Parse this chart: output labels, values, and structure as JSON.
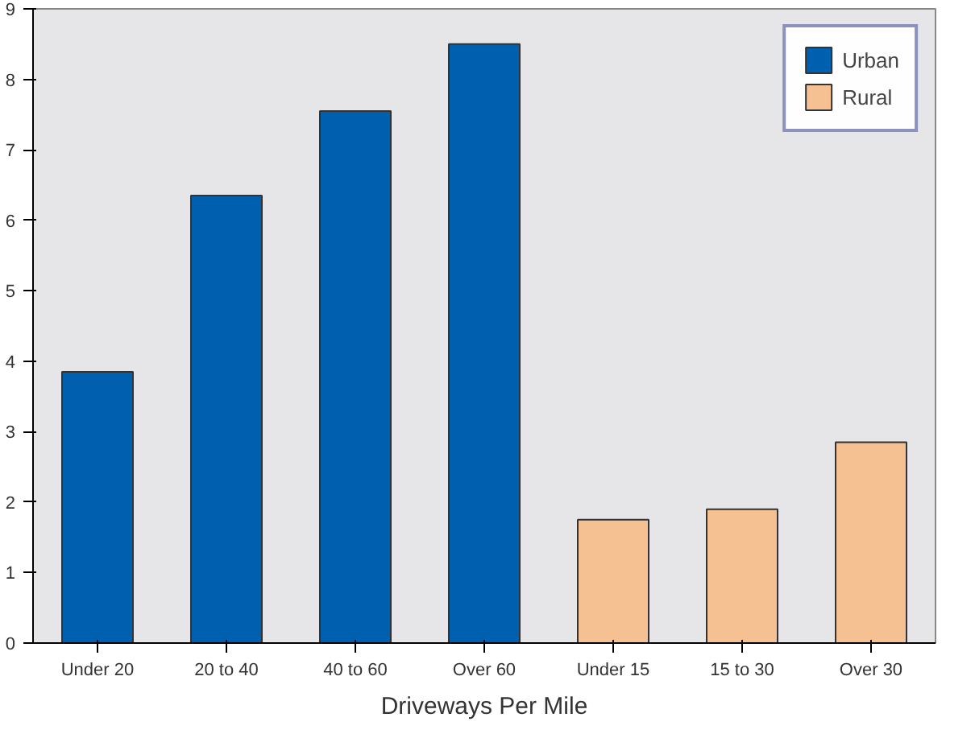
{
  "chart_data": {
    "type": "bar",
    "xlabel": "Driveways Per Mile",
    "categories": [
      "Under 20",
      "20 to 40",
      "40 to 60",
      "Over 60",
      "Under 15",
      "15 to 30",
      "Over 30"
    ],
    "series": [
      {
        "name": "Urban",
        "color": "#0060b0",
        "values": [
          3.85,
          6.35,
          7.55,
          8.5,
          null,
          null,
          null
        ]
      },
      {
        "name": "Rural",
        "color": "#f6c192",
        "values": [
          null,
          null,
          null,
          null,
          1.75,
          1.9,
          2.85
        ]
      }
    ],
    "ylim": [
      0,
      9
    ],
    "yticks": [
      0,
      1,
      2,
      3,
      4,
      5,
      6,
      7,
      8,
      9
    ],
    "grid": false,
    "legend": "top right"
  }
}
